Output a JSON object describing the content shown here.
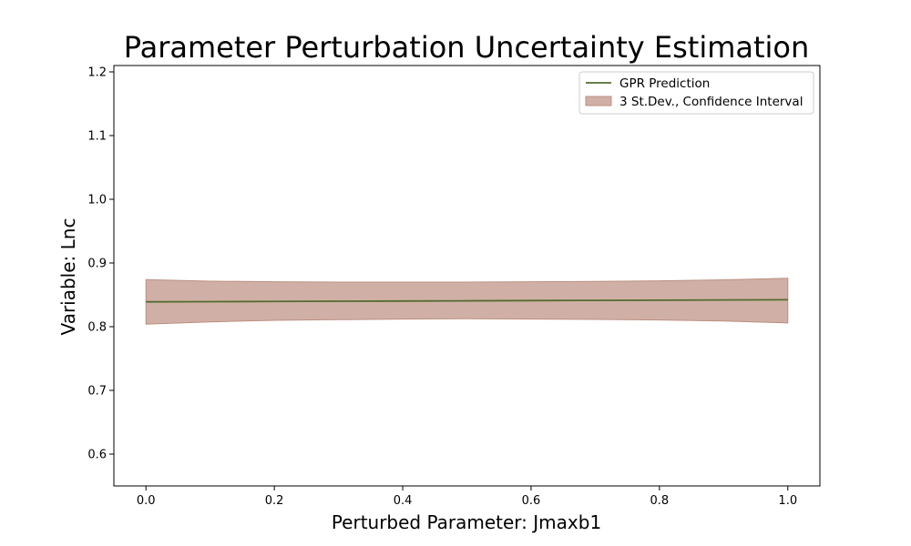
{
  "chart_data": {
    "type": "line",
    "title": "Parameter Perturbation Uncertainty Estimation",
    "xlabel": "Perturbed Parameter: Jmaxb1",
    "ylabel": "Variable: Lnc",
    "xlim": [
      -0.05,
      1.05
    ],
    "ylim": [
      0.55,
      1.21
    ],
    "xticks": [
      0.0,
      0.2,
      0.4,
      0.6,
      0.8,
      1.0
    ],
    "xtick_labels": [
      "0.0",
      "0.2",
      "0.4",
      "0.6",
      "0.8",
      "1.0"
    ],
    "yticks": [
      0.6,
      0.7,
      0.8,
      0.9,
      1.0,
      1.1,
      1.2
    ],
    "ytick_labels": [
      "0.6",
      "0.7",
      "0.8",
      "0.9",
      "1.0",
      "1.1",
      "1.2"
    ],
    "grid": false,
    "legend_position": "top-right",
    "series": [
      {
        "name": "GPR Prediction",
        "kind": "line",
        "color": "#556b2f",
        "x": [
          0.0,
          0.1,
          0.2,
          0.3,
          0.4,
          0.5,
          0.6,
          0.7,
          0.8,
          0.9,
          1.0
        ],
        "y": [
          0.839,
          0.8393,
          0.8396,
          0.84,
          0.8403,
          0.8406,
          0.841,
          0.8413,
          0.8416,
          0.842,
          0.8423
        ]
      },
      {
        "name": "3 St.Dev., Confidence Interval",
        "kind": "band",
        "color": "#bc8f80",
        "x": [
          0.0,
          0.1,
          0.2,
          0.3,
          0.4,
          0.5,
          0.6,
          0.7,
          0.8,
          0.9,
          1.0
        ],
        "upper": [
          0.874,
          0.8715,
          0.8705,
          0.87,
          0.87,
          0.87,
          0.8705,
          0.871,
          0.872,
          0.8735,
          0.876
        ],
        "lower": [
          0.804,
          0.8075,
          0.81,
          0.811,
          0.812,
          0.8125,
          0.812,
          0.8115,
          0.8105,
          0.809,
          0.806
        ]
      }
    ]
  }
}
